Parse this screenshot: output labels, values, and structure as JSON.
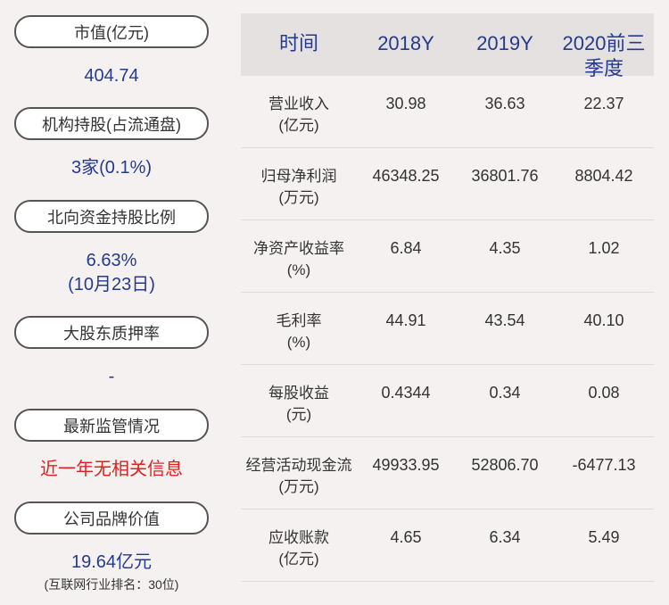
{
  "left": [
    {
      "label": "市值(亿元)",
      "value": "404.74"
    },
    {
      "label": "机构持股(占流通盘)",
      "value": "3家(0.1%)"
    },
    {
      "label": "北向资金持股比例",
      "value": "6.63%",
      "value2": "(10月23日)"
    },
    {
      "label": "大股东质押率",
      "value": "-"
    },
    {
      "label": "最新监管情况",
      "value": "近一年无相关信息",
      "color": "#e02020"
    },
    {
      "label": "公司品牌价值",
      "value": "19.64亿元",
      "note": "(互联网行业排名：30位)"
    }
  ],
  "table": {
    "header": [
      "时间",
      "2018Y",
      "2019Y",
      "2020前三季度"
    ],
    "rows": [
      [
        "营业收入",
        "(亿元)",
        "30.98",
        "36.63",
        "22.37"
      ],
      [
        "归母净利润",
        "(万元)",
        "46348.25",
        "36801.76",
        "8804.42"
      ],
      [
        "净资产收益率",
        "(%)",
        "6.84",
        "4.35",
        "1.02"
      ],
      [
        "毛利率",
        "(%)",
        "44.91",
        "43.54",
        "40.10"
      ],
      [
        "每股收益",
        "(元)",
        "0.4344",
        "0.34",
        "0.08"
      ],
      [
        "经营活动现金流",
        "(万元)",
        "49933.95",
        "52806.70",
        "-6477.13"
      ],
      [
        "应收账款",
        "(亿元)",
        "4.65",
        "6.34",
        "5.49"
      ]
    ]
  }
}
